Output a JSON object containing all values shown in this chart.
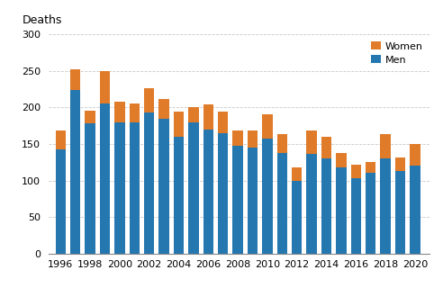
{
  "years": [
    1996,
    1997,
    1998,
    1999,
    2000,
    2001,
    2002,
    2003,
    2004,
    2005,
    2006,
    2007,
    2008,
    2009,
    2010,
    2011,
    2012,
    2013,
    2014,
    2015,
    2016,
    2017,
    2018,
    2019,
    2020
  ],
  "men": [
    143,
    224,
    178,
    206,
    180,
    180,
    193,
    185,
    160,
    180,
    170,
    165,
    148,
    145,
    158,
    138,
    100,
    136,
    130,
    118,
    103,
    110,
    130,
    113,
    121
  ],
  "women": [
    26,
    28,
    18,
    44,
    28,
    26,
    33,
    27,
    35,
    20,
    34,
    30,
    20,
    23,
    33,
    25,
    18,
    33,
    30,
    20,
    19,
    15,
    33,
    18,
    29
  ],
  "men_color": "#2577b0",
  "women_color": "#e07b2a",
  "ylabel": "Deaths",
  "ylim": [
    0,
    300
  ],
  "yticks": [
    0,
    50,
    100,
    150,
    200,
    250,
    300
  ],
  "xtick_years": [
    1996,
    1998,
    2000,
    2002,
    2004,
    2006,
    2008,
    2010,
    2012,
    2014,
    2016,
    2018,
    2020
  ],
  "legend_labels": [
    "Women",
    "Men"
  ],
  "legend_colors": [
    "#e07b2a",
    "#2577b0"
  ],
  "bar_width": 0.7,
  "background_color": "#ffffff",
  "grid_color": "#c8c8c8"
}
